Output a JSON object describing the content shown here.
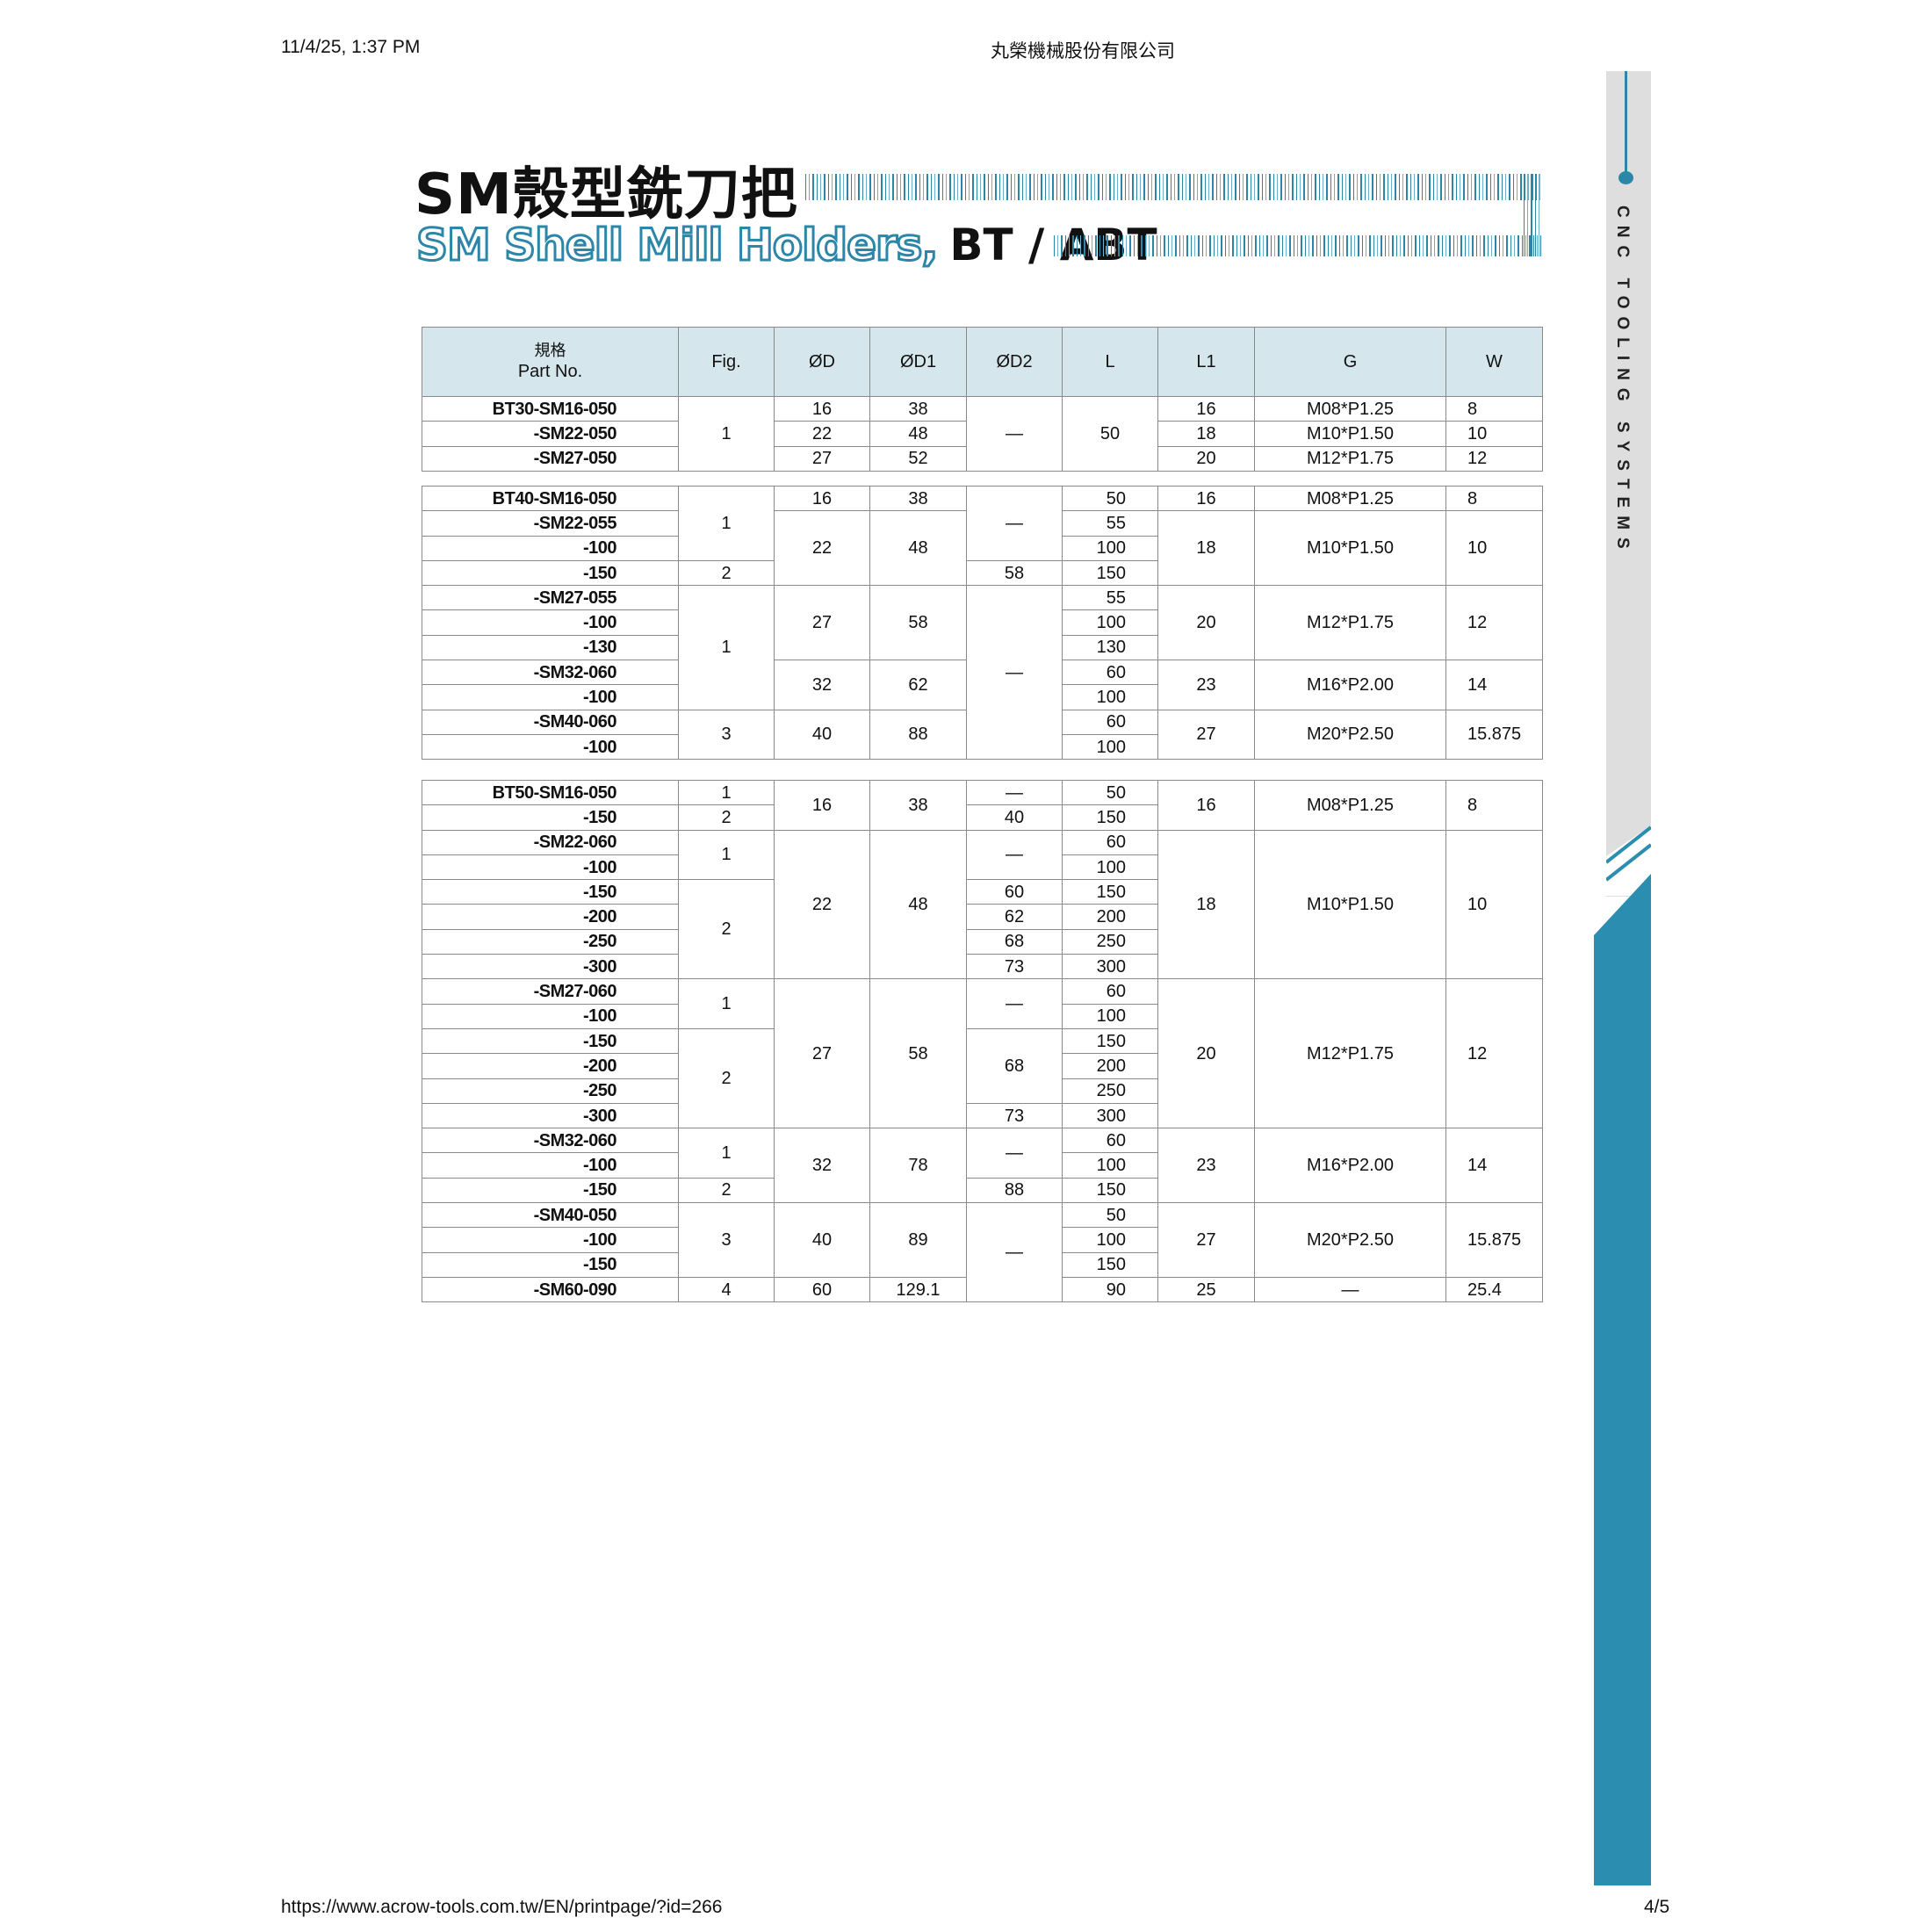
{
  "browser": {
    "date": "11/4/25, 1:37 PM",
    "page_title": "丸榮機械股份有限公司",
    "url": "https://www.acrow-tools.com.tw/EN/printpage/?id=266",
    "page_num": "4/5"
  },
  "title": {
    "zh": "SM殼型銑刀把",
    "en": "SM Shell Mill Holders,",
    "en_suffix": "BT / ABT"
  },
  "sidebar": {
    "text": "CNC TOOLING SYSTEMS"
  },
  "colors": {
    "accent": "#2b8db0",
    "header_bg": "#d5e6ec",
    "sidebar_gray": "#dedede"
  },
  "table": {
    "headers": {
      "part_zh": "規格",
      "part_en": "Part No.",
      "fig": "Fig.",
      "D": "ØD",
      "D1": "ØD1",
      "D2": "ØD2",
      "L": "L",
      "L1": "L1",
      "G": "G",
      "W": "W"
    },
    "groups": [
      [
        [
          [
            "BT30-SM16-050",
            "part"
          ],
          [
            "1",
            "",
            3
          ],
          [
            "16"
          ],
          [
            "38"
          ],
          [
            "—",
            "",
            3
          ],
          [
            "50",
            "",
            3
          ],
          [
            "16"
          ],
          [
            "M08*P1.25"
          ],
          [
            "8",
            "W"
          ]
        ],
        [
          [
            "-SM22-050",
            "part"
          ],
          [
            "22"
          ],
          [
            "48"
          ],
          [
            "18"
          ],
          [
            "M10*P1.50"
          ],
          [
            "10",
            "W"
          ]
        ],
        [
          [
            "-SM27-050",
            "part"
          ],
          [
            "27"
          ],
          [
            "52"
          ],
          [
            "20"
          ],
          [
            "M12*P1.75"
          ],
          [
            "12",
            "W"
          ]
        ]
      ],
      [
        [
          [
            "BT40-SM16-050",
            "part"
          ],
          [
            "1",
            "",
            3
          ],
          [
            "16"
          ],
          [
            "38"
          ],
          [
            "—",
            "",
            3
          ],
          [
            "50",
            "L"
          ],
          [
            "16"
          ],
          [
            "M08*P1.25"
          ],
          [
            "8",
            "W"
          ]
        ],
        [
          [
            "-SM22-055",
            "part"
          ],
          [
            "22",
            "",
            3
          ],
          [
            "48",
            "",
            3
          ],
          [
            "55",
            "L"
          ],
          [
            "18",
            "",
            3
          ],
          [
            "M10*P1.50",
            "",
            3
          ],
          [
            "10",
            "W",
            3
          ]
        ],
        [
          [
            "-100",
            "part"
          ],
          [
            "100",
            "L"
          ]
        ],
        [
          [
            "-150",
            "part"
          ],
          [
            "2"
          ],
          [
            "58"
          ],
          [
            "150",
            "L"
          ]
        ],
        [
          [
            "-SM27-055",
            "part"
          ],
          [
            "1",
            "",
            5
          ],
          [
            "27",
            "",
            3
          ],
          [
            "58",
            "",
            3
          ],
          [
            "—",
            "",
            7
          ],
          [
            "55",
            "L"
          ],
          [
            "20",
            "",
            3
          ],
          [
            "M12*P1.75",
            "",
            3
          ],
          [
            "12",
            "W",
            3
          ]
        ],
        [
          [
            "-100",
            "part"
          ],
          [
            "100",
            "L"
          ]
        ],
        [
          [
            "-130",
            "part"
          ],
          [
            "130",
            "L"
          ]
        ],
        [
          [
            "-SM32-060",
            "part"
          ],
          [
            "32",
            "",
            2
          ],
          [
            "62",
            "",
            2
          ],
          [
            "60",
            "L"
          ],
          [
            "23",
            "",
            2
          ],
          [
            "M16*P2.00",
            "",
            2
          ],
          [
            "14",
            "W",
            2
          ]
        ],
        [
          [
            "-100",
            "part"
          ],
          [
            "100",
            "L"
          ]
        ],
        [
          [
            "-SM40-060",
            "part"
          ],
          [
            "3",
            "",
            2
          ],
          [
            "40",
            "",
            2
          ],
          [
            "88",
            "",
            2
          ],
          [
            "60",
            "L"
          ],
          [
            "27",
            "",
            2
          ],
          [
            "M20*P2.50",
            "",
            2
          ],
          [
            "15.875",
            "W",
            2
          ]
        ],
        [
          [
            "-100",
            "part"
          ],
          [
            "100",
            "L"
          ]
        ]
      ],
      [
        [
          [
            "BT50-SM16-050",
            "part"
          ],
          [
            "1"
          ],
          [
            "16",
            "",
            2
          ],
          [
            "38",
            "",
            2
          ],
          [
            "—"
          ],
          [
            "50",
            "L"
          ],
          [
            "16",
            "",
            2
          ],
          [
            "M08*P1.25",
            "",
            2
          ],
          [
            "8",
            "W",
            2
          ]
        ],
        [
          [
            "-150",
            "part"
          ],
          [
            "2"
          ],
          [
            "40"
          ],
          [
            "150",
            "L"
          ]
        ],
        [
          [
            "-SM22-060",
            "part"
          ],
          [
            "1",
            "",
            2
          ],
          [
            "22",
            "",
            6
          ],
          [
            "48",
            "",
            6
          ],
          [
            "—",
            "",
            2
          ],
          [
            "60",
            "L"
          ],
          [
            "18",
            "",
            6
          ],
          [
            "M10*P1.50",
            "",
            6
          ],
          [
            "10",
            "W",
            6
          ]
        ],
        [
          [
            "-100",
            "part"
          ],
          [
            "100",
            "L"
          ]
        ],
        [
          [
            "-150",
            "part"
          ],
          [
            "2",
            "",
            4
          ],
          [
            "60"
          ],
          [
            "150",
            "L"
          ]
        ],
        [
          [
            "-200",
            "part"
          ],
          [
            "62"
          ],
          [
            "200",
            "L"
          ]
        ],
        [
          [
            "-250",
            "part"
          ],
          [
            "68"
          ],
          [
            "250",
            "L"
          ]
        ],
        [
          [
            "-300",
            "part"
          ],
          [
            "73"
          ],
          [
            "300",
            "L"
          ]
        ],
        [
          [
            "-SM27-060",
            "part"
          ],
          [
            "1",
            "",
            2
          ],
          [
            "27",
            "",
            6
          ],
          [
            "58",
            "",
            6
          ],
          [
            "—",
            "",
            2
          ],
          [
            "60",
            "L"
          ],
          [
            "20",
            "",
            6
          ],
          [
            "M12*P1.75",
            "",
            6
          ],
          [
            "12",
            "W",
            6
          ]
        ],
        [
          [
            "-100",
            "part"
          ],
          [
            "100",
            "L"
          ]
        ],
        [
          [
            "-150",
            "part"
          ],
          [
            "2",
            "",
            4
          ],
          [
            "68",
            "",
            3
          ],
          [
            "150",
            "L"
          ]
        ],
        [
          [
            "-200",
            "part"
          ],
          [
            "200",
            "L"
          ]
        ],
        [
          [
            "-250",
            "part"
          ],
          [
            "250",
            "L"
          ]
        ],
        [
          [
            "-300",
            "part"
          ],
          [
            "73"
          ],
          [
            "300",
            "L"
          ]
        ],
        [
          [
            "-SM32-060",
            "part"
          ],
          [
            "1",
            "",
            2
          ],
          [
            "32",
            "",
            3
          ],
          [
            "78",
            "",
            3
          ],
          [
            "—",
            "",
            2
          ],
          [
            "60",
            "L"
          ],
          [
            "23",
            "",
            3
          ],
          [
            "M16*P2.00",
            "",
            3
          ],
          [
            "14",
            "W",
            3
          ]
        ],
        [
          [
            "-100",
            "part"
          ],
          [
            "100",
            "L"
          ]
        ],
        [
          [
            "-150",
            "part"
          ],
          [
            "2"
          ],
          [
            "88"
          ],
          [
            "150",
            "L"
          ]
        ],
        [
          [
            "-SM40-050",
            "part"
          ],
          [
            "3",
            "",
            3
          ],
          [
            "40",
            "",
            3
          ],
          [
            "89",
            "",
            3
          ],
          [
            "—",
            "",
            4
          ],
          [
            "50",
            "L"
          ],
          [
            "27",
            "",
            3
          ],
          [
            "M20*P2.50",
            "",
            3
          ],
          [
            "15.875",
            "W",
            3
          ]
        ],
        [
          [
            "-100",
            "part"
          ],
          [
            "100",
            "L"
          ]
        ],
        [
          [
            "-150",
            "part"
          ],
          [
            "150",
            "L"
          ]
        ],
        [
          [
            "-SM60-090",
            "part"
          ],
          [
            "4"
          ],
          [
            "60"
          ],
          [
            "129.1"
          ],
          [
            "90",
            "L"
          ],
          [
            "25"
          ],
          [
            "—"
          ],
          [
            "25.4",
            "W"
          ]
        ]
      ]
    ]
  }
}
